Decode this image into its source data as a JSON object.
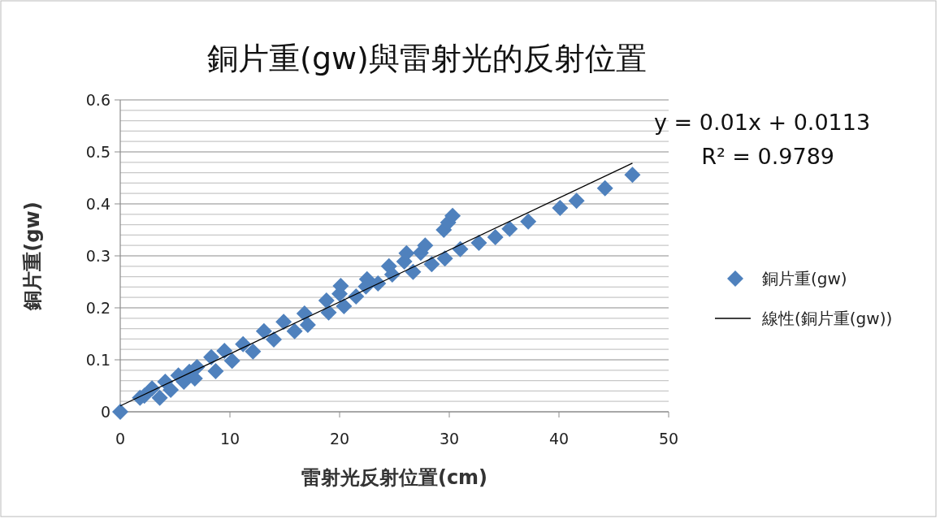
{
  "chart_data": {
    "type": "scatter",
    "title": "銅片重(gw)與雷射光的反射位置",
    "xlabel": "雷射光反射位置(cm)",
    "ylabel": "銅片重(gw)",
    "xlim": [
      0,
      50
    ],
    "xticks": [
      0,
      10,
      20,
      30,
      40,
      50
    ],
    "ylim": [
      0,
      0.6
    ],
    "yticks": [
      0,
      {
        "value": 0.02,
        "label": null
      },
      {
        "value": 0.04,
        "label": null
      },
      {
        "value": 0.06,
        "label": null
      },
      {
        "value": 0.08,
        "label": null
      },
      0.1,
      {
        "value": 0.12,
        "label": null
      },
      {
        "value": 0.14,
        "label": null
      },
      {
        "value": 0.16,
        "label": null
      },
      {
        "value": 0.18,
        "label": null
      },
      0.2,
      {
        "value": 0.22,
        "label": null
      },
      {
        "value": 0.24,
        "label": null
      },
      {
        "value": 0.26,
        "label": null
      },
      {
        "value": 0.28,
        "label": null
      },
      0.3,
      {
        "value": 0.32,
        "label": null
      },
      {
        "value": 0.34,
        "label": null
      },
      {
        "value": 0.36,
        "label": null
      },
      {
        "value": 0.38,
        "label": null
      },
      0.4,
      {
        "value": 0.42,
        "label": null
      },
      {
        "value": 0.44,
        "label": null
      },
      {
        "value": 0.46,
        "label": null
      },
      {
        "value": 0.48,
        "label": null
      },
      0.5,
      {
        "value": 0.52,
        "label": null
      },
      {
        "value": 0.54,
        "label": null
      },
      {
        "value": 0.56,
        "label": null
      },
      {
        "value": 0.58,
        "label": null
      },
      0.6
    ],
    "grid": "y",
    "legend": "right",
    "series": [
      {
        "name": "銅片重(gw)",
        "color": "#4f81bd",
        "marker": "diamond",
        "x": [
          0,
          1.8,
          2.2,
          2.9,
          3.6,
          4.1,
          4.6,
          5.3,
          5.8,
          6.3,
          6.8,
          7.0,
          8.3,
          8.7,
          9.5,
          10.2,
          11.2,
          12.1,
          13.1,
          14.0,
          14.9,
          15.9,
          16.8,
          17.1,
          18.8,
          19.0,
          20.0,
          20.1,
          20.4,
          21.5,
          22.4,
          22.5,
          23.5,
          24.5,
          24.8,
          25.9,
          26.1,
          26.7,
          27.4,
          27.8,
          28.4,
          29.5,
          29.6,
          29.9,
          30.3,
          31.0,
          32.7,
          34.2,
          35.5,
          37.2,
          40.1,
          41.6,
          44.2,
          46.7
        ],
        "values": [
          0,
          0.027,
          0.031,
          0.045,
          0.027,
          0.058,
          0.042,
          0.07,
          0.058,
          0.077,
          0.064,
          0.086,
          0.105,
          0.078,
          0.117,
          0.098,
          0.13,
          0.116,
          0.155,
          0.139,
          0.173,
          0.155,
          0.189,
          0.167,
          0.214,
          0.191,
          0.227,
          0.242,
          0.203,
          0.222,
          0.241,
          0.255,
          0.247,
          0.28,
          0.264,
          0.289,
          0.305,
          0.269,
          0.306,
          0.32,
          0.284,
          0.35,
          0.295,
          0.364,
          0.377,
          0.313,
          0.325,
          0.336,
          0.352,
          0.366,
          0.392,
          0.406,
          0.43,
          0.456
        ]
      },
      {
        "name": "線性(銅片重(gw))",
        "type": "line",
        "color": "#000000",
        "marker": "none",
        "line_style": "solid",
        "x": [
          0,
          46.7
        ],
        "values": [
          0.0113,
          0.4783
        ]
      }
    ],
    "annotations": [
      "y = 0.01x + 0.0113",
      "R² = 0.9789"
    ]
  }
}
